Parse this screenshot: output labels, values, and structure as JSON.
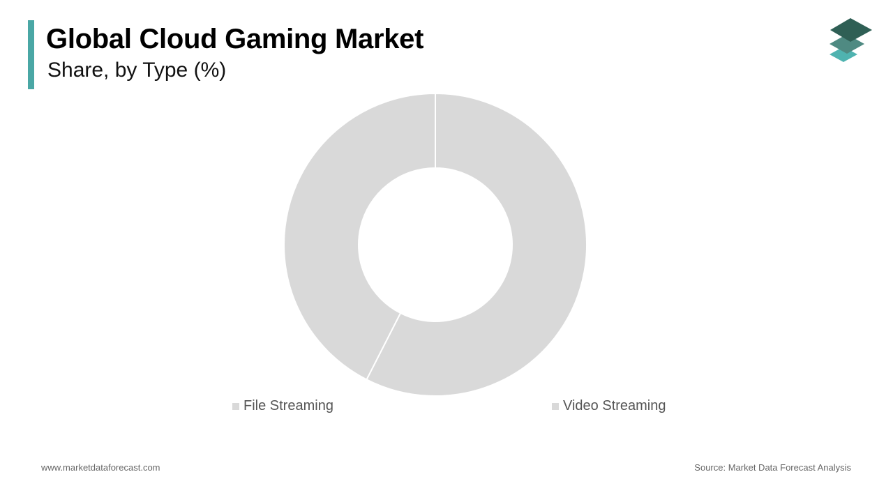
{
  "header": {
    "title": "Global Cloud Gaming Market",
    "subtitle": "Share, by Type (%)"
  },
  "colors": {
    "accent": "#4aa7a5",
    "slice": "#d9d9d9",
    "logo_dark": "#2f5f55",
    "logo_mid": "#4f8a82",
    "logo_light": "#4fb3b0"
  },
  "logo": {
    "icon": "stacked-layers-icon"
  },
  "chart_data": {
    "type": "pie",
    "donut": true,
    "title": "Global Cloud Gaming Market",
    "subtitle": "Share, by Type (%)",
    "slices": [
      {
        "label": "Video Streaming",
        "value": 57.5,
        "color": "#d9d9d9"
      },
      {
        "label": "File Streaming",
        "value": 42.5,
        "color": "#d9d9d9"
      }
    ],
    "legend": [
      "File Streaming",
      "Video Streaming"
    ],
    "legend_position": "bottom"
  },
  "footer": {
    "website": "www.marketdataforecast.com",
    "source": "Source: Market Data Forecast Analysis"
  }
}
